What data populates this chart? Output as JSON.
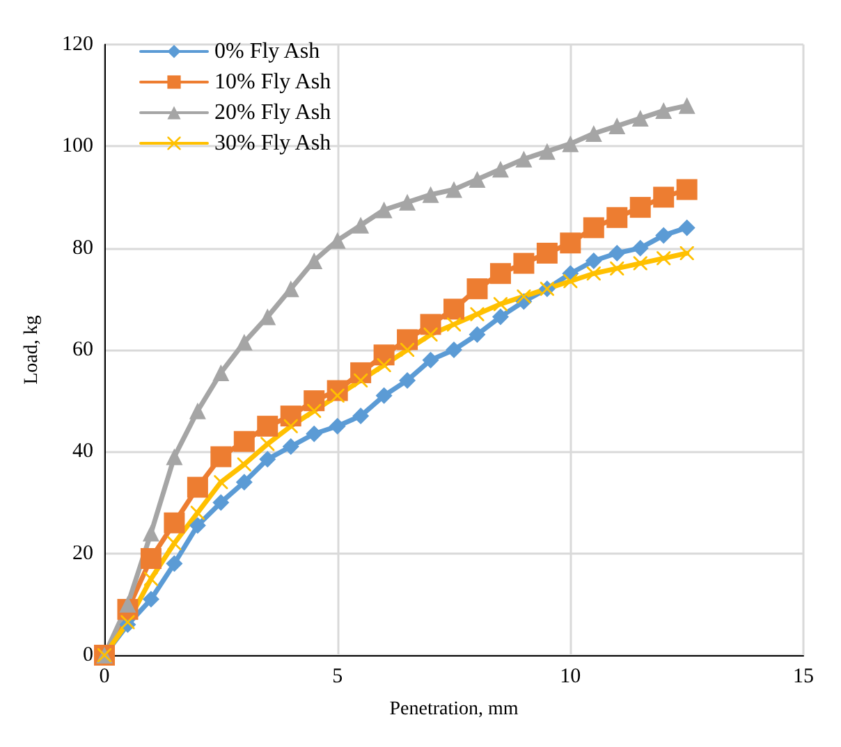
{
  "chart_data": {
    "type": "line",
    "xlabel": "Penetration, mm",
    "ylabel": "Load, kg",
    "x": [
      0,
      0.5,
      1,
      1.5,
      2,
      2.5,
      3,
      3.5,
      4,
      4.5,
      5,
      5.5,
      6,
      6.5,
      7,
      7.5,
      8,
      8.5,
      9,
      9.5,
      10,
      10.5,
      11,
      11.5,
      12,
      12.5
    ],
    "xlim": [
      0,
      15
    ],
    "xticks": [
      0,
      5,
      10,
      15
    ],
    "ylim": [
      0,
      120
    ],
    "yticks": [
      0,
      20,
      40,
      60,
      80,
      100,
      120
    ],
    "grid": true,
    "legend": "top left",
    "line_style": "solid",
    "series": [
      {
        "name": "0% Fly Ash",
        "color": "#5b9bd5",
        "marker": "diamond",
        "values": [
          0,
          6,
          11,
          18,
          25.5,
          30,
          34,
          38.5,
          41,
          43.5,
          45,
          47,
          51,
          54,
          58,
          60,
          63,
          66.5,
          69.5,
          72,
          75,
          77.5,
          79,
          80,
          82.5,
          84
        ]
      },
      {
        "name": "10% Fly Ash",
        "color": "#ed7d31",
        "marker": "square",
        "values": [
          0,
          9,
          19,
          26,
          33,
          39,
          42,
          45,
          47,
          50,
          52,
          55.5,
          59,
          62,
          65,
          68,
          72,
          75,
          77,
          79,
          81,
          84,
          86,
          88,
          90,
          91.5
        ]
      },
      {
        "name": "20% Fly Ash",
        "color": "#a5a5a5",
        "marker": "triangle",
        "values": [
          0,
          10,
          24,
          39,
          48,
          55.5,
          61.5,
          66.5,
          72,
          77.5,
          81.5,
          84.5,
          87.5,
          89,
          90.5,
          91.5,
          93.5,
          95.5,
          97.5,
          99,
          100.5,
          102.5,
          104,
          105.5,
          107,
          108
        ]
      },
      {
        "name": "30% Fly Ash",
        "color": "#ffc000",
        "marker": "cross",
        "values": [
          0,
          6.5,
          15,
          22,
          28,
          34,
          37.5,
          41.5,
          45,
          48,
          51,
          54,
          57,
          60,
          63,
          65,
          67,
          69,
          70.5,
          72,
          73.5,
          75,
          76,
          77,
          78,
          79
        ]
      }
    ]
  }
}
